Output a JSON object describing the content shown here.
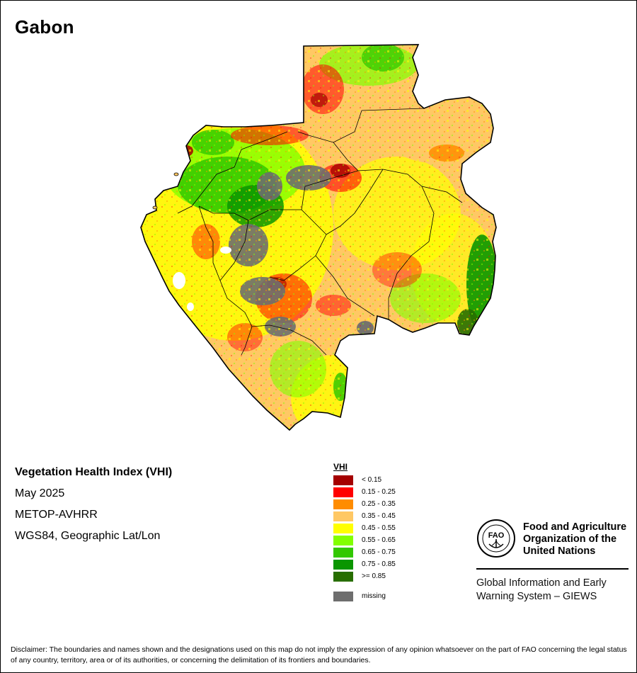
{
  "country": "Gabon",
  "info": {
    "title": "Vegetation Health Index (VHI)",
    "date": "May 2025",
    "sensor": "METOP-AVHRR",
    "projection": "WGS84, Geographic Lat/Lon"
  },
  "legend": {
    "title": "VHI",
    "classes": [
      {
        "label": "< 0.15",
        "color": "#a50000"
      },
      {
        "label": "0.15 - 0.25",
        "color": "#ff0000"
      },
      {
        "label": "0.25 - 0.35",
        "color": "#ff8c00"
      },
      {
        "label": "0.35 - 0.45",
        "color": "#ffc864"
      },
      {
        "label": "0.45 - 0.55",
        "color": "#ffff00"
      },
      {
        "label": "0.55 - 0.65",
        "color": "#82ff00"
      },
      {
        "label": "0.65 - 0.75",
        "color": "#32c800"
      },
      {
        "label": "0.75 - 0.85",
        "color": "#0a9600"
      },
      {
        "label": ">= 0.85",
        "color": "#286e00"
      }
    ],
    "missing": {
      "label": "missing",
      "color": "#6e6e6e"
    }
  },
  "org": {
    "logo_text": "FAO",
    "line1": "Food and Agriculture",
    "line2": "Organization of the",
    "line3": "United Nations",
    "giews1": "Global Information and Early",
    "giews2": "Warning System – GIEWS"
  },
  "disclaimer": "Disclaimer: The boundaries and names shown and the designations used on this map do not imply the expression of any opinion whatsoever on the part of FAO concerning the legal status of any country, territory, area or of its authorities, or concerning the delimitation of its frontiers and boundaries."
}
